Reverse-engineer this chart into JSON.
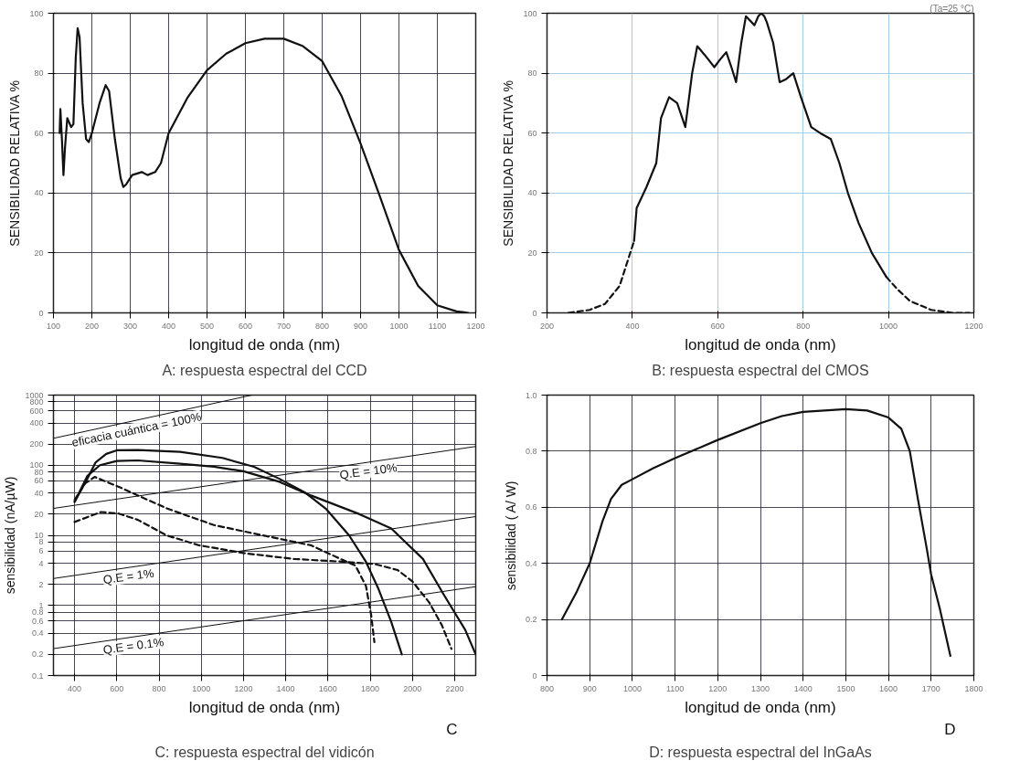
{
  "chart_data": [
    {
      "type": "line",
      "title": "A: respuesta espectral del CCD",
      "xlabel": "longitud de onda (nm)",
      "ylabel": "SENSIBILIDAD RELATIVA %",
      "xlim": [
        100,
        1200
      ],
      "ylim": [
        0,
        100
      ],
      "xticks": [
        100,
        200,
        300,
        400,
        500,
        600,
        700,
        800,
        900,
        1000,
        1100,
        1200
      ],
      "yticks": [
        0,
        20,
        40,
        60,
        80,
        100
      ],
      "grid": true,
      "marker": "none",
      "series": [
        {
          "color": "#111111",
          "line_style": "solid",
          "x": [
            116,
            118,
            122,
            126,
            130,
            136,
            146,
            152,
            158,
            163,
            168,
            176,
            185,
            192,
            200,
            220,
            236,
            245,
            260,
            275,
            282,
            290,
            305,
            330,
            345,
            365,
            380,
            400,
            450,
            500,
            550,
            600,
            650,
            700,
            750,
            800,
            850,
            900,
            950,
            1000,
            1050,
            1100,
            1150,
            1180
          ],
          "values": [
            60,
            68,
            58,
            46,
            55,
            65,
            62,
            63,
            85,
            95,
            92,
            70,
            58,
            57,
            60,
            70,
            76,
            74,
            58,
            45,
            42,
            43,
            46,
            47,
            46,
            47,
            50,
            60,
            72,
            81,
            86.5,
            90,
            91.5,
            91.5,
            89,
            84,
            72.5,
            56.5,
            39,
            21,
            9,
            2.5,
            0.5,
            0
          ]
        }
      ]
    },
    {
      "type": "line",
      "title": "B: respuesta espectral del CMOS",
      "xlabel": "longitud de onda (nm)",
      "ylabel": "SENSIBILIDAD RELATIVA %",
      "xlim": [
        200,
        1200
      ],
      "ylim": [
        0,
        100
      ],
      "xticks": [
        200,
        400,
        600,
        800,
        1000,
        1200
      ],
      "yticks": [
        0,
        20,
        40,
        60,
        80,
        100
      ],
      "grid": true,
      "marker": "none",
      "annotations": [
        "(Ta=25 °C)"
      ],
      "series": [
        {
          "color": "#111111",
          "line_style": "dashed",
          "x": [
            250,
            300,
            336,
            370,
            404
          ],
          "values": [
            0,
            1,
            3,
            9,
            24
          ]
        },
        {
          "color": "#111111",
          "line_style": "solid",
          "x": [
            404,
            410,
            433,
            456,
            467,
            486,
            505,
            524,
            540,
            552,
            570,
            592,
            608,
            620,
            632,
            643,
            655,
            666,
            686,
            695,
            702,
            709,
            715,
            730,
            745,
            760,
            777,
            795,
            819,
            840,
            865,
            885,
            905,
            930,
            961,
            995
          ],
          "values": [
            24,
            35,
            42,
            50,
            65,
            72,
            70,
            62,
            80,
            89,
            86,
            82,
            85,
            87,
            82,
            77,
            90,
            99,
            96,
            99,
            100,
            99,
            97,
            90,
            77,
            78,
            80,
            72,
            62,
            60,
            58,
            50,
            40,
            30,
            20,
            12
          ]
        },
        {
          "color": "#111111",
          "line_style": "dashed",
          "x": [
            995,
            1020,
            1050,
            1100,
            1150,
            1190
          ],
          "values": [
            12,
            8,
            4,
            1,
            0,
            0
          ]
        }
      ]
    },
    {
      "type": "line",
      "title": "C: respuesta espectral del vidicón",
      "xlabel": "longitud de onda (nm)",
      "ylabel": "sensibilidad (nA/µW)",
      "log": "y",
      "xlim": [
        300,
        2300
      ],
      "ylim": [
        0.1,
        1000
      ],
      "xticks": [
        400,
        600,
        800,
        1000,
        1200,
        1400,
        1600,
        1800,
        2000,
        2200
      ],
      "yticks": [
        0.1,
        0.2,
        0.4,
        0.6,
        0.8,
        1,
        2,
        4,
        6,
        8,
        10,
        20,
        40,
        60,
        80,
        100,
        200,
        400,
        600,
        800,
        1000
      ],
      "grid": true,
      "marker": "none",
      "annotations": [
        "C"
      ],
      "series": [
        {
          "name": "eficacia cuántica = 100%",
          "color": "#111111",
          "line_style": "solid",
          "x": [
            300,
            1240
          ],
          "values": [
            242,
            1000
          ]
        },
        {
          "name": "Q.E = 10%",
          "color": "#111111",
          "line_style": "solid",
          "x": [
            300,
            2300
          ],
          "values": [
            24.2,
            185
          ]
        },
        {
          "name": "Q.E = 1%",
          "color": "#111111",
          "line_style": "solid",
          "x": [
            300,
            2300
          ],
          "values": [
            2.42,
            18.5
          ]
        },
        {
          "name": "Q.E = 0.1%",
          "color": "#111111",
          "line_style": "solid",
          "x": [
            300,
            2300
          ],
          "values": [
            0.242,
            1.85
          ]
        },
        {
          "color": "#111111",
          "line_style": "solid",
          "x": [
            400,
            460,
            500,
            550,
            600,
            700,
            900,
            1100,
            1250,
            1370,
            1490,
            1590,
            1700,
            1780,
            1840,
            1900,
            1950
          ],
          "values": [
            30,
            64,
            110,
            145,
            163,
            165,
            155,
            127,
            95,
            64,
            41,
            24,
            10,
            4.2,
            1.7,
            0.58,
            0.2
          ]
        },
        {
          "color": "#111111",
          "line_style": "solid",
          "x": [
            400,
            460,
            520,
            600,
            700,
            900,
            1060,
            1200,
            1370,
            1520,
            1750,
            1900,
            2050,
            2150,
            2250,
            2300
          ],
          "values": [
            30,
            70,
            100,
            115,
            117,
            105,
            95,
            82,
            58,
            37,
            20,
            12.5,
            4.6,
            1.4,
            0.45,
            0.2
          ]
        },
        {
          "color": "#111111",
          "line_style": "dashed",
          "x": [
            400,
            450,
            495,
            610,
            700,
            840,
            1060,
            1290,
            1520,
            1640,
            1730,
            1780,
            1805,
            1820
          ],
          "values": [
            32,
            55,
            68,
            49,
            37,
            24,
            14,
            10,
            7.2,
            4.9,
            3.7,
            1.9,
            0.72,
            0.3
          ]
        },
        {
          "color": "#111111",
          "line_style": "dashed",
          "x": [
            400,
            525,
            610,
            700,
            835,
            990,
            1215,
            1440,
            1670,
            1820,
            1930,
            2000,
            2080,
            2140,
            2185
          ],
          "values": [
            15.5,
            21.5,
            20.4,
            16.6,
            10,
            7.2,
            5.5,
            4.6,
            4.2,
            3.9,
            3.2,
            2.2,
            1.1,
            0.52,
            0.24
          ]
        }
      ]
    },
    {
      "type": "line",
      "title": "D: respuesta espectral del InGaAs",
      "xlabel": "longitud de onda (nm)",
      "ylabel": "sensibilidad ( A/ W)",
      "xlim": [
        800,
        1800
      ],
      "ylim": [
        0,
        1
      ],
      "xticks": [
        800,
        900,
        1000,
        1100,
        1200,
        1300,
        1400,
        1500,
        1600,
        1700,
        1800
      ],
      "yticks": [
        0,
        0.2,
        0.4,
        0.6,
        0.8,
        {
          "value": 1,
          "label": "1.0"
        }
      ],
      "grid": true,
      "marker": "none",
      "annotations": [
        "D"
      ],
      "series": [
        {
          "color": "#111111",
          "line_style": "solid",
          "x": [
            835,
            870,
            900,
            930,
            950,
            975,
            1000,
            1050,
            1100,
            1200,
            1300,
            1350,
            1400,
            1500,
            1550,
            1600,
            1630,
            1650,
            1670,
            1690,
            1700,
            1720,
            1745
          ],
          "values": [
            0.2,
            0.3,
            0.4,
            0.55,
            0.63,
            0.68,
            0.7,
            0.74,
            0.775,
            0.84,
            0.9,
            0.925,
            0.94,
            0.95,
            0.945,
            0.92,
            0.88,
            0.8,
            0.62,
            0.45,
            0.36,
            0.24,
            0.07
          ]
        }
      ]
    }
  ]
}
